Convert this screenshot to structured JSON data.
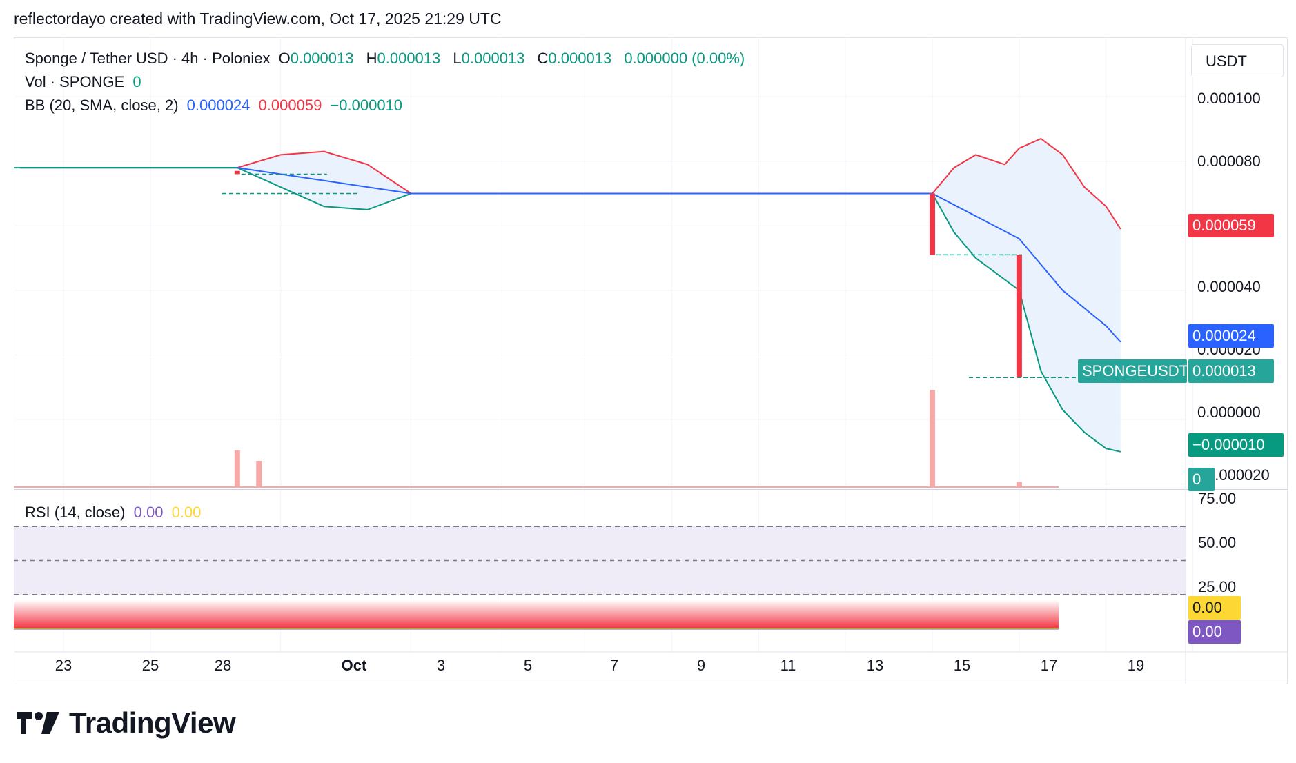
{
  "header": {
    "caption": "reflectordayo created with TradingView.com, Oct 17, 2025 21:29 UTC"
  },
  "legend": {
    "title": "Sponge / Tether USD · 4h · Poloniex",
    "o_label": "O",
    "o_value": "0.000013",
    "h_label": "H",
    "h_value": "0.000013",
    "l_label": "L",
    "l_value": "0.000013",
    "c_label": "C",
    "c_value": "0.000013",
    "change": "0.000000 (0.00%)",
    "vol_label": "Vol · SPONGE",
    "vol_value": "0",
    "bb_label": "BB (20, SMA, close, 2)",
    "bb_basis": "0.000024",
    "bb_upper": "0.000059",
    "bb_lower": "−0.000010",
    "rsi_label": "RSI (14, close)",
    "rsi_value": "0.00",
    "rsi_ma_value": "0.00"
  },
  "axis_unit_button": "USDT",
  "price_ticks": [
    "0.000100",
    "0.000080",
    "0.000040",
    "0.000020",
    "0.000000",
    "0.000020"
  ],
  "rsi_ticks": [
    "75.00",
    "50.00",
    "25.00"
  ],
  "x_ticks": [
    "23",
    "25",
    "28",
    "Oct",
    "3",
    "5",
    "7",
    "9",
    "11",
    "13",
    "15",
    "17",
    "19"
  ],
  "tags": {
    "upper": "0.000059",
    "basis": "0.000024",
    "symbol": "SPONGEUSDT",
    "last": "0.000013",
    "lower": "−0.000010",
    "volume": "0",
    "rsi_ma": "0.00",
    "rsi": "0.00"
  },
  "colors": {
    "up": "#089981",
    "down": "#f23645",
    "basis": "#2962ff",
    "band_fill": "#eaf3fd",
    "rsi_band": "#efecf8",
    "rsi_line": "#7e57c2",
    "rsi_ma": "#fdd835",
    "tag_red": "#f23645",
    "tag_blue": "#2962ff",
    "tag_teal": "#26a69a",
    "tag_green": "#089981",
    "tag_yellow": "#fdd835",
    "tag_purple": "#7e57c2",
    "grid": "#f0f3fa"
  },
  "footer": {
    "brand": "TradingView"
  },
  "chart_data": {
    "type": "candlestick",
    "title": "Sponge / Tether USD · 4h · Poloniex",
    "x_range": [
      "Sep 22, 2025",
      "Oct 20, 2025"
    ],
    "y_range": [
      -2.5e-05,
      0.000112
    ],
    "candles": [
      {
        "date": "Sep 22, 2025",
        "open": 7.8e-05,
        "close": 7.8e-05
      },
      {
        "date": "Sep 27, 2025",
        "open": 7.7e-05,
        "close": 7.6e-05
      },
      {
        "date": "Sep 28, 2025",
        "open": 7e-05,
        "close": 7e-05
      },
      {
        "date": "Oct 13, 2025",
        "open": 7e-05,
        "close": 5.1e-05
      },
      {
        "date": "Oct 15, 2025",
        "open": 5.1e-05,
        "close": 1.3e-05
      },
      {
        "date": "Oct 17, 2025",
        "open": 1.3e-05,
        "close": 1.3e-05
      }
    ],
    "bollinger": {
      "upper": [
        {
          "date": "Sep 22, 2025",
          "value": 7.8e-05
        },
        {
          "date": "Sep 27, 2025",
          "value": 7.8e-05
        },
        {
          "date": "Sep 28, 2025",
          "value": 8.2e-05
        },
        {
          "date": "Sep 29, 2025",
          "value": 8.3e-05
        },
        {
          "date": "Sep 30, 2025",
          "value": 7.9e-05
        },
        {
          "date": "Oct 1, 2025",
          "value": 7e-05
        },
        {
          "date": "Oct 13, 2025",
          "value": 7e-05
        },
        {
          "date": "Oct 13, 2025 12:00",
          "value": 7.8e-05
        },
        {
          "date": "Oct 14, 2025",
          "value": 8.2e-05
        },
        {
          "date": "Oct 14, 2025 16:00",
          "value": 7.9e-05
        },
        {
          "date": "Oct 15, 2025",
          "value": 8.4e-05
        },
        {
          "date": "Oct 15, 2025 12:00",
          "value": 8.7e-05
        },
        {
          "date": "Oct 16, 2025",
          "value": 8.2e-05
        },
        {
          "date": "Oct 16, 2025 12:00",
          "value": 7.2e-05
        },
        {
          "date": "Oct 17, 2025",
          "value": 6.6e-05
        },
        {
          "date": "Oct 17, 2025 08:00",
          "value": 5.9e-05
        }
      ],
      "basis": [
        {
          "date": "Sep 22, 2025",
          "value": 7.8e-05
        },
        {
          "date": "Sep 27, 2025",
          "value": 7.8e-05
        },
        {
          "date": "Oct 1, 2025",
          "value": 7e-05
        },
        {
          "date": "Oct 13, 2025",
          "value": 7e-05
        },
        {
          "date": "Oct 14, 2025",
          "value": 6.3e-05
        },
        {
          "date": "Oct 15, 2025",
          "value": 5.6e-05
        },
        {
          "date": "Oct 16, 2025",
          "value": 4e-05
        },
        {
          "date": "Oct 17, 2025",
          "value": 2.9e-05
        },
        {
          "date": "Oct 17, 2025 08:00",
          "value": 2.4e-05
        }
      ],
      "lower": [
        {
          "date": "Sep 22, 2025",
          "value": 7.8e-05
        },
        {
          "date": "Sep 27, 2025",
          "value": 7.8e-05
        },
        {
          "date": "Sep 28, 2025",
          "value": 7.2e-05
        },
        {
          "date": "Sep 29, 2025",
          "value": 6.6e-05
        },
        {
          "date": "Sep 30, 2025",
          "value": 6.5e-05
        },
        {
          "date": "Oct 1, 2025",
          "value": 7e-05
        },
        {
          "date": "Oct 13, 2025",
          "value": 7e-05
        },
        {
          "date": "Oct 13, 2025 12:00",
          "value": 5.8e-05
        },
        {
          "date": "Oct 14, 2025",
          "value": 5e-05
        },
        {
          "date": "Oct 15, 2025",
          "value": 4e-05
        },
        {
          "date": "Oct 15, 2025 12:00",
          "value": 1.5e-05
        },
        {
          "date": "Oct 16, 2025",
          "value": 3e-06
        },
        {
          "date": "Oct 16, 2025 12:00",
          "value": -4e-06
        },
        {
          "date": "Oct 17, 2025",
          "value": -9e-06
        },
        {
          "date": "Oct 17, 2025 08:00",
          "value": -1e-05
        }
      ]
    },
    "volume": [
      {
        "date": "Sep 27, 2025",
        "value": 0.14
      },
      {
        "date": "Sep 27, 2025 12:00",
        "value": 0.1
      },
      {
        "date": "Oct 13, 2025",
        "value": 0.37
      },
      {
        "date": "Oct 15, 2025",
        "value": 0.02
      }
    ],
    "rsi": {
      "levels": [
        75,
        50,
        25
      ],
      "value": 0.0,
      "ma": 0.0
    }
  }
}
